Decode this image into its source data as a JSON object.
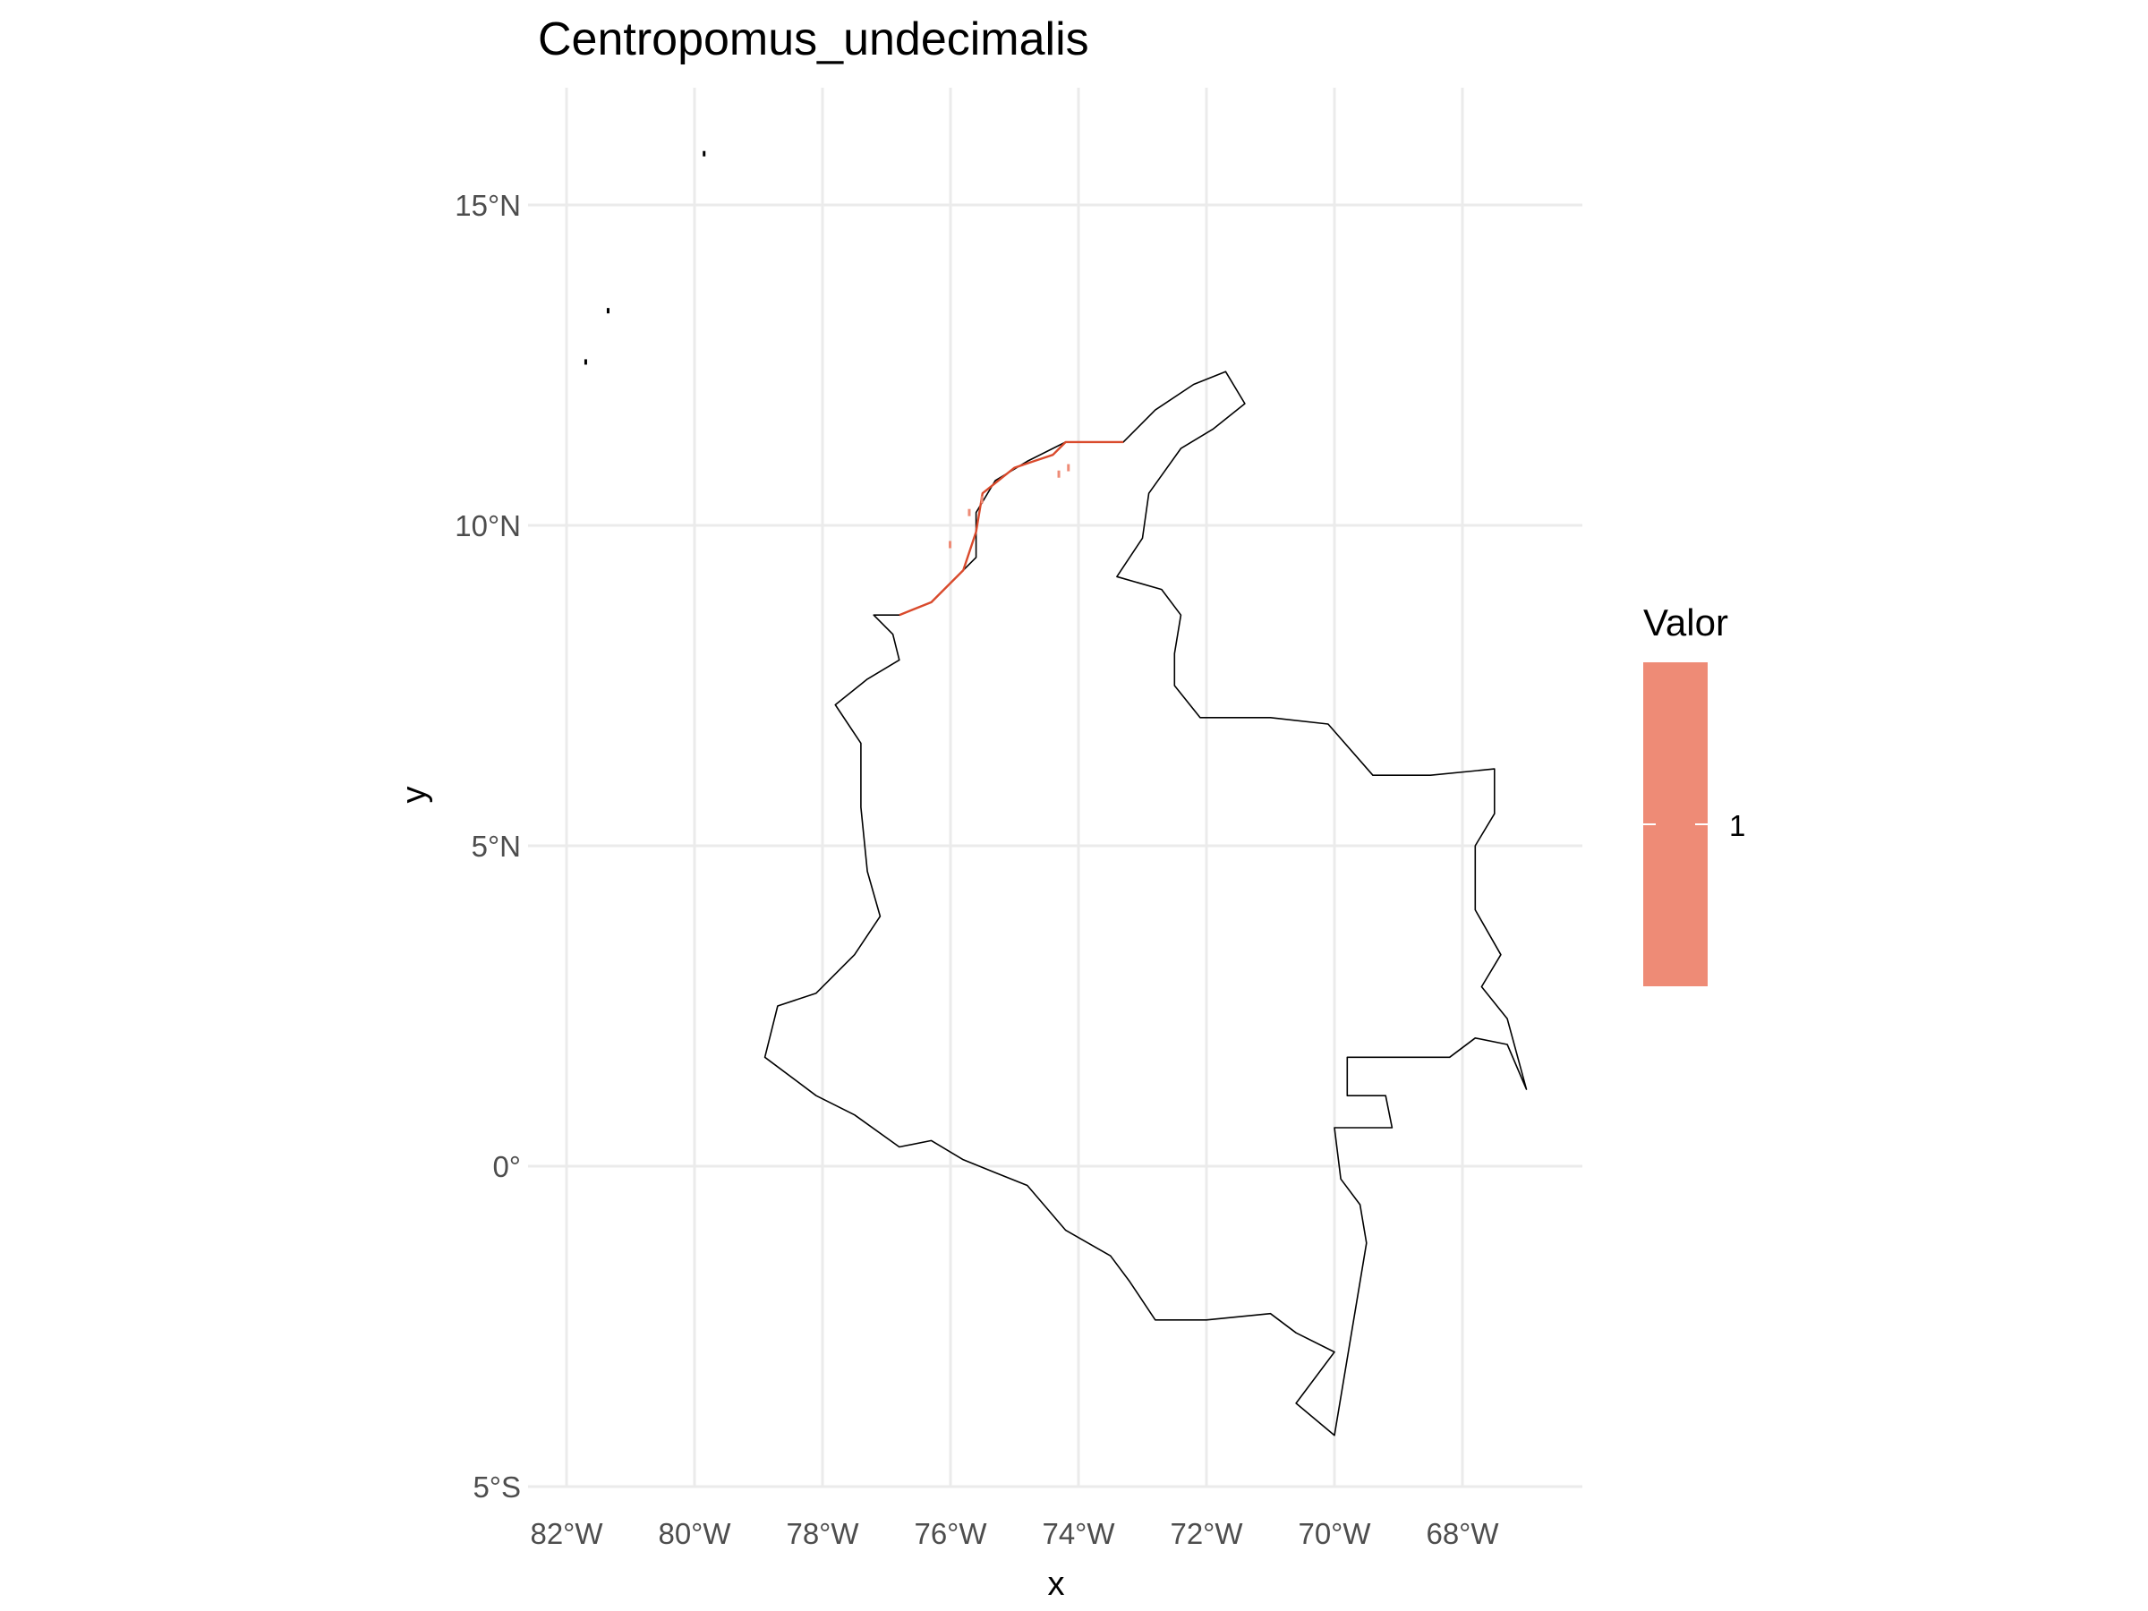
{
  "title": "Centropomus_undecimalis",
  "x_axis": {
    "label": "x",
    "ticks": [
      {
        "value": -82,
        "label": "82°W"
      },
      {
        "value": -80,
        "label": "80°W"
      },
      {
        "value": -78,
        "label": "78°W"
      },
      {
        "value": -76,
        "label": "76°W"
      },
      {
        "value": -74,
        "label": "74°W"
      },
      {
        "value": -72,
        "label": "72°W"
      },
      {
        "value": -70,
        "label": "70°W"
      },
      {
        "value": -68,
        "label": "68°W"
      }
    ],
    "range": [
      -82.1,
      -66.2
    ]
  },
  "y_axis": {
    "label": "y",
    "ticks": [
      {
        "value": 15,
        "label": "15°N"
      },
      {
        "value": 10,
        "label": "10°N"
      },
      {
        "value": 5,
        "label": "5°N"
      },
      {
        "value": 0,
        "label": "0°"
      },
      {
        "value": -5,
        "label": "5°S"
      }
    ],
    "range": [
      -5,
      16.8
    ]
  },
  "legend": {
    "title": "Valor",
    "entries": [
      {
        "value": "1",
        "color": "#EE8B76"
      }
    ]
  },
  "colors": {
    "grid": "#ebebeb",
    "boundary": "#000000",
    "fill_value": "#EE8B76",
    "presence": "#d94a2c"
  },
  "chart_data": {
    "type": "map",
    "region": "Colombia",
    "species": "Centropomus_undecimalis",
    "grid": true,
    "legend_position": "right",
    "boundary": [
      [
        -77.2,
        8.6
      ],
      [
        -76.9,
        8.3
      ],
      [
        -76.8,
        7.9
      ],
      [
        -77.3,
        7.6
      ],
      [
        -77.8,
        7.2
      ],
      [
        -77.4,
        6.6
      ],
      [
        -77.4,
        5.6
      ],
      [
        -77.3,
        4.6
      ],
      [
        -77.1,
        3.9
      ],
      [
        -77.5,
        3.3
      ],
      [
        -78.1,
        2.7
      ],
      [
        -78.7,
        2.5
      ],
      [
        -78.9,
        1.7
      ],
      [
        -78.1,
        1.1
      ],
      [
        -77.5,
        0.8
      ],
      [
        -76.8,
        0.3
      ],
      [
        -76.3,
        0.4
      ],
      [
        -75.8,
        0.1
      ],
      [
        -75.3,
        -0.1
      ],
      [
        -74.8,
        -0.3
      ],
      [
        -74.2,
        -1.0
      ],
      [
        -73.5,
        -1.4
      ],
      [
        -73.2,
        -1.8
      ],
      [
        -72.8,
        -2.4
      ],
      [
        -72.0,
        -2.4
      ],
      [
        -71.0,
        -2.3
      ],
      [
        -70.6,
        -2.6
      ],
      [
        -70.0,
        -2.9
      ],
      [
        -70.6,
        -3.7
      ],
      [
        -70.0,
        -4.2
      ],
      [
        -69.5,
        -1.2
      ],
      [
        -69.6,
        -0.6
      ],
      [
        -69.9,
        -0.2
      ],
      [
        -70.0,
        0.6
      ],
      [
        -69.1,
        0.6
      ],
      [
        -69.2,
        1.1
      ],
      [
        -69.8,
        1.1
      ],
      [
        -69.8,
        1.7
      ],
      [
        -68.2,
        1.7
      ],
      [
        -67.8,
        2.0
      ],
      [
        -67.3,
        1.9
      ],
      [
        -67.0,
        1.2
      ],
      [
        -67.3,
        2.3
      ],
      [
        -67.7,
        2.8
      ],
      [
        -67.4,
        3.3
      ],
      [
        -67.8,
        4.0
      ],
      [
        -67.8,
        5.0
      ],
      [
        -67.5,
        5.5
      ],
      [
        -67.5,
        6.2
      ],
      [
        -68.5,
        6.1
      ],
      [
        -69.4,
        6.1
      ],
      [
        -70.1,
        6.9
      ],
      [
        -71.0,
        7.0
      ],
      [
        -72.1,
        7.0
      ],
      [
        -72.5,
        7.5
      ],
      [
        -72.5,
        8.0
      ],
      [
        -72.4,
        8.6
      ],
      [
        -72.7,
        9.0
      ],
      [
        -73.4,
        9.2
      ],
      [
        -73.0,
        9.8
      ],
      [
        -72.9,
        10.5
      ],
      [
        -72.4,
        11.2
      ],
      [
        -71.9,
        11.5
      ],
      [
        -71.4,
        11.9
      ],
      [
        -71.7,
        12.4
      ],
      [
        -72.2,
        12.2
      ],
      [
        -72.8,
        11.8
      ],
      [
        -73.3,
        11.3
      ],
      [
        -74.2,
        11.3
      ],
      [
        -74.8,
        11.0
      ],
      [
        -75.3,
        10.7
      ],
      [
        -75.6,
        10.2
      ],
      [
        -75.6,
        9.5
      ],
      [
        -76.3,
        8.8
      ],
      [
        -76.8,
        8.6
      ],
      [
        -77.2,
        8.6
      ]
    ],
    "islands": [
      [
        -81.7,
        12.55
      ],
      [
        -81.35,
        13.35
      ],
      [
        -79.85,
        15.8
      ]
    ],
    "presence_coast": [
      [
        -76.8,
        8.6
      ],
      [
        -76.3,
        8.8
      ],
      [
        -75.8,
        9.3
      ],
      [
        -75.6,
        9.9
      ],
      [
        -75.5,
        10.5
      ],
      [
        -75.0,
        10.9
      ],
      [
        -74.7,
        11.0
      ],
      [
        -74.4,
        11.1
      ],
      [
        -74.2,
        11.3
      ],
      [
        -73.7,
        11.3
      ],
      [
        -73.3,
        11.3
      ]
    ],
    "presence_points": [
      [
        -74.3,
        10.8
      ],
      [
        -74.15,
        10.9
      ],
      [
        -75.7,
        10.2
      ],
      [
        -75.5,
        10.4
      ],
      [
        -76.0,
        9.7
      ]
    ]
  }
}
